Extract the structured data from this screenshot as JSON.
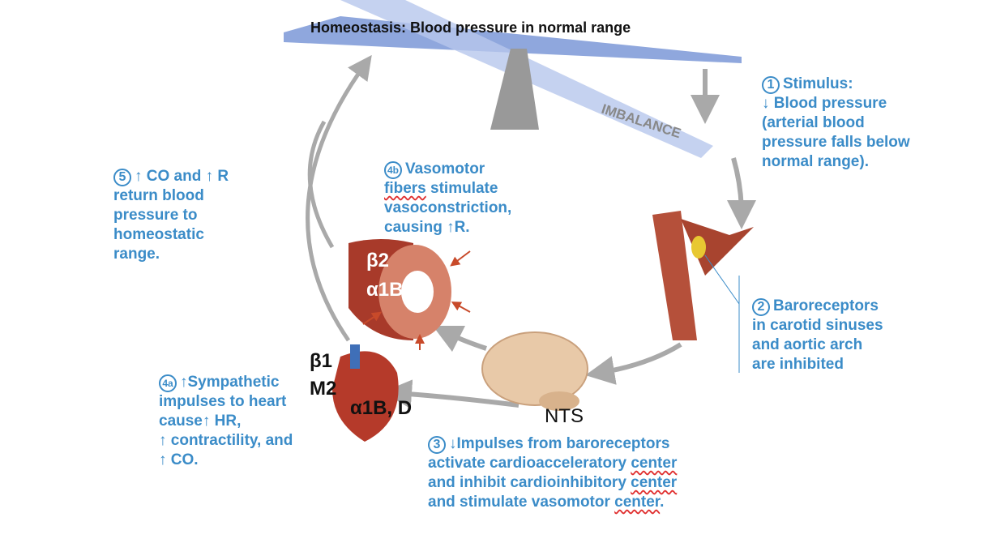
{
  "title": {
    "bold": "Homeostasis:",
    "rest": " Blood pressure in normal range"
  },
  "imbalance": "IMBALANCE",
  "step1": {
    "num": "1",
    "head": "Stimulus:",
    "body": "↓ Blood pressure\n(arterial blood\npressure falls below\nnormal range)."
  },
  "step2": {
    "num": "2",
    "body": "Baroreceptors\nin carotid sinuses\nand aortic arch\nare inhibited"
  },
  "step3": {
    "num": "3",
    "l1": "↓Impulses from baroreceptors",
    "l2a": "activate cardioacceleratory ",
    "l2b": "center",
    "l3a": "and inhibit cardioinhibitory ",
    "l3b": "center",
    "l4a": "and stimulate vasomotor ",
    "l4b": "center",
    "l4c": "."
  },
  "step4a": {
    "num": "4a",
    "body": "↑Sympathetic\nimpulses to heart\ncause↑ HR,\n↑ contractility, and\n↑ CO."
  },
  "step4b": {
    "num": "4b",
    "l1": "Vasomotor",
    "l2a": "fibers",
    "l2b": " stimulate",
    "l3": "vasoconstriction,",
    "l4": "causing ↑R."
  },
  "step5": {
    "num": "5",
    "head": "↑ CO and ↑ R",
    "body": "return blood\npressure to\nhomeostatic\nrange."
  },
  "vessel_labels": {
    "a": "β2",
    "b": "α1B, D"
  },
  "heart_labels": {
    "a": "β1",
    "b": "M2",
    "c": "α1B, D"
  },
  "brain_label": "NTS",
  "colors": {
    "text": "#3b8cc8",
    "arrow": "#a9a9a9",
    "beam": "#8fa7dd",
    "tissue": "#b5503a"
  }
}
